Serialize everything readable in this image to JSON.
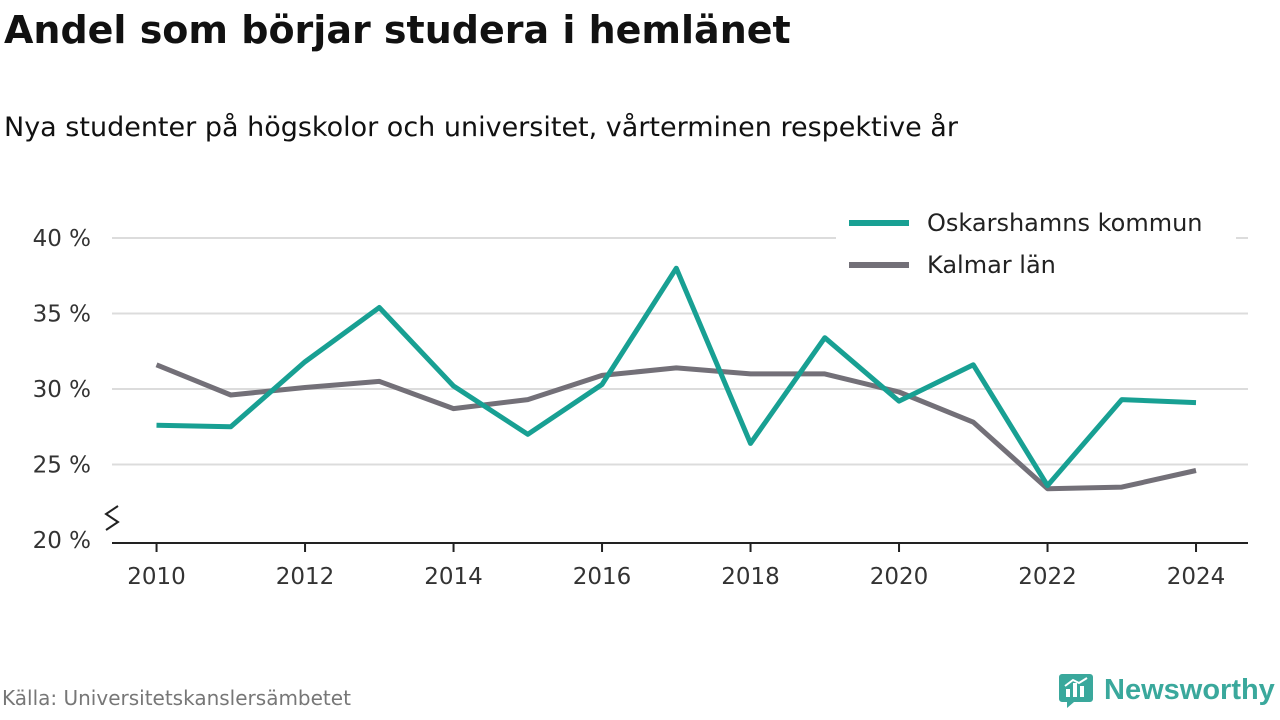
{
  "header": {
    "title": "Andel som börjar studera i hemlänet",
    "subtitle": "Nya studenter på högskolor och universitet, vårterminen respektive år"
  },
  "footer": {
    "source": "Källa: Universitetskanslersämbetet",
    "brand": "Newsworthy",
    "brand_icon": "bar-chart-speech-bubble-icon"
  },
  "chart_data": {
    "type": "line",
    "x": [
      2010,
      2011,
      2012,
      2013,
      2014,
      2015,
      2016,
      2017,
      2018,
      2019,
      2020,
      2021,
      2022,
      2023,
      2024
    ],
    "x_tick_labels": [
      "2010",
      "2012",
      "2014",
      "2016",
      "2018",
      "2020",
      "2022",
      "2024"
    ],
    "x_ticks": [
      2010,
      2012,
      2014,
      2016,
      2018,
      2020,
      2022,
      2024
    ],
    "xlim": [
      2009.4,
      2024.7
    ],
    "y_ticks": [
      20,
      25,
      30,
      35,
      40
    ],
    "y_tick_labels": [
      "20 %",
      "25 %",
      "30 %",
      "35 %",
      "40 %"
    ],
    "ylim": [
      20,
      40
    ],
    "y_axis_break": true,
    "grid": "horizontal",
    "legend_position": "top-right",
    "series": [
      {
        "name": "Oskarshamns kommun",
        "color": "#18a093",
        "values": [
          27.6,
          27.5,
          31.8,
          35.4,
          30.2,
          27.0,
          30.3,
          38.0,
          26.4,
          33.4,
          29.2,
          31.6,
          23.6,
          29.3,
          29.1
        ]
      },
      {
        "name": "Kalmar län",
        "color": "#737078",
        "values": [
          31.6,
          29.6,
          30.1,
          30.5,
          28.7,
          29.3,
          30.9,
          31.4,
          31.0,
          31.0,
          29.8,
          27.8,
          23.4,
          23.5,
          24.6
        ]
      }
    ]
  }
}
